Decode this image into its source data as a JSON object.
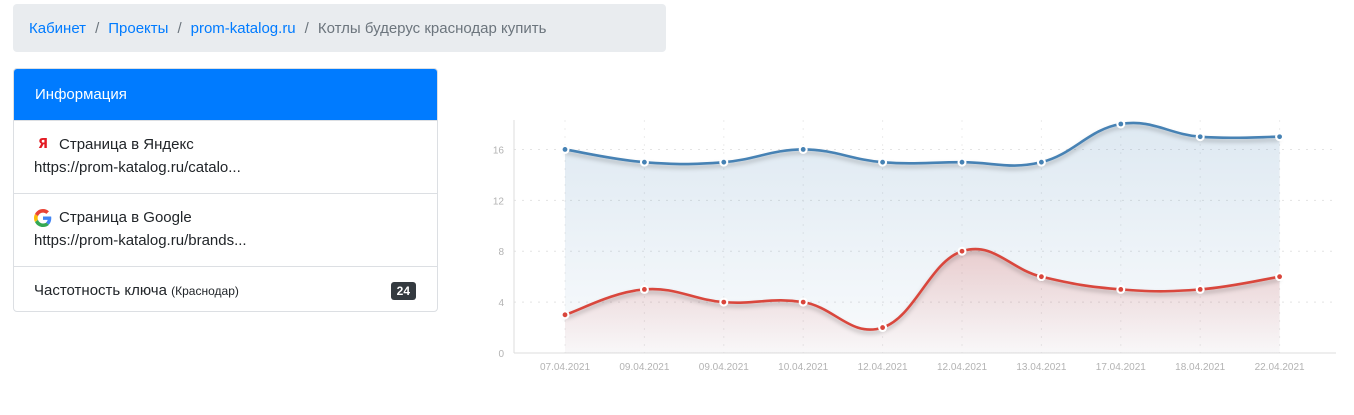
{
  "breadcrumb": {
    "items": [
      "Кабинет",
      "Проекты",
      "prom-katalog.ru"
    ],
    "current": "Котлы будерус краснодар купить",
    "separator": "/"
  },
  "info": {
    "header": "Информация",
    "yandex": {
      "label": "Страница в Яндекс",
      "url": "https://prom-katalog.ru/catalo...",
      "icon": "yandex-icon"
    },
    "google": {
      "label": "Страница в Google",
      "url": "https://prom-katalog.ru/brands...",
      "icon": "google-icon"
    },
    "frequency": {
      "label": "Частотность ключа",
      "region": "(Краснодар)",
      "value": "24"
    }
  },
  "chart_data": {
    "type": "line",
    "categories": [
      "07.04.2021",
      "09.04.2021",
      "09.04.2021",
      "10.04.2021",
      "12.04.2021",
      "12.04.2021",
      "13.04.2021",
      "17.04.2021",
      "18.04.2021",
      "22.04.2021"
    ],
    "series": [
      {
        "color": "#4682b4",
        "values": [
          16,
          15,
          15,
          16,
          15,
          15,
          15,
          18,
          17,
          17
        ]
      },
      {
        "color": "#d9463c",
        "values": [
          3,
          5,
          4,
          4,
          2,
          8,
          6,
          5,
          5,
          6
        ]
      }
    ],
    "ylim": [
      0,
      18
    ],
    "yticks": [
      0,
      4,
      8,
      12,
      16
    ],
    "grid": true
  }
}
